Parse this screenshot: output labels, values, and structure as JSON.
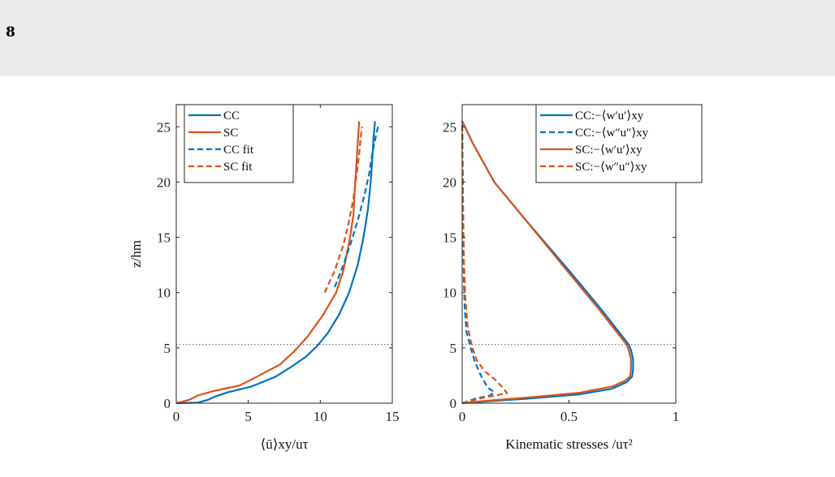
{
  "page": {
    "number": "8"
  },
  "colors": {
    "cc": "#0072BD",
    "sc": "#D95319",
    "axis": "#262626",
    "dotted": "#555555"
  },
  "chart_data": [
    {
      "type": "line",
      "xlabel": "⟨ū⟩xy/uτ",
      "ylabel": "z/hm",
      "xlim": [
        0,
        15
      ],
      "ylim": [
        0,
        27
      ],
      "xticks": [
        0,
        5,
        10,
        15
      ],
      "yticks": [
        0,
        5,
        10,
        15,
        20,
        25
      ],
      "hline": 5.3,
      "legend_position": "top-left",
      "series": [
        {
          "name": "CC",
          "style": "solid",
          "color": "cc",
          "x": [
            0,
            1.5,
            2.2,
            2.7,
            3.6,
            5.2,
            6.9,
            8.0,
            9.0,
            9.8,
            10.5,
            11.3,
            12.0,
            12.6,
            13.0,
            13.3,
            13.5,
            13.6,
            13.7,
            13.8
          ],
          "y": [
            0,
            0.05,
            0.3,
            0.6,
            1.0,
            1.5,
            2.4,
            3.3,
            4.2,
            5.2,
            6.3,
            8.0,
            10.0,
            12.5,
            15.0,
            17.5,
            20.0,
            22.0,
            24.0,
            25.5
          ]
        },
        {
          "name": "SC",
          "style": "solid",
          "color": "sc",
          "x": [
            0,
            0.9,
            1.5,
            2.6,
            4.4,
            5.6,
            7.2,
            8.2,
            9.1,
            10.2,
            11.1,
            11.6,
            12.0,
            12.3,
            12.4,
            12.5,
            12.6,
            12.7
          ],
          "y": [
            0,
            0.3,
            0.7,
            1.1,
            1.6,
            2.4,
            3.5,
            4.7,
            6.0,
            8.0,
            10.0,
            12.0,
            14.5,
            17.0,
            19.5,
            21.5,
            23.5,
            25.5
          ]
        },
        {
          "name": "CC fit",
          "style": "dashed",
          "color": "cc",
          "x": [
            11.0,
            11.6,
            12.2,
            12.7,
            13.1,
            13.4,
            13.6,
            13.8,
            14.0
          ],
          "y": [
            10.5,
            12.5,
            14.8,
            17.0,
            19.0,
            20.8,
            22.5,
            23.8,
            25.0
          ]
        },
        {
          "name": "SC fit",
          "style": "dashed",
          "color": "sc",
          "x": [
            10.3,
            11.0,
            11.6,
            12.0,
            12.3,
            12.5,
            12.7,
            12.8,
            12.9
          ],
          "y": [
            10.0,
            12.0,
            14.3,
            16.5,
            18.5,
            20.5,
            22.5,
            24.0,
            25.0
          ]
        }
      ]
    },
    {
      "type": "line",
      "xlabel": "Kinematic stresses /uτ²",
      "ylabel": "",
      "xlim": [
        0,
        1
      ],
      "ylim": [
        0,
        27
      ],
      "xticks": [
        0,
        0.5,
        1
      ],
      "yticks": [
        0,
        5,
        10,
        15,
        20,
        25
      ],
      "hline": 5.3,
      "legend_position": "top-right",
      "series": [
        {
          "name": "CC:−⟨w′u′⟩xy",
          "style": "solid",
          "color": "cc",
          "x": [
            0,
            0.1,
            0.3,
            0.55,
            0.7,
            0.77,
            0.795,
            0.8,
            0.8,
            0.79,
            0.78,
            0.65,
            0.5,
            0.3,
            0.15,
            0.05,
            0
          ],
          "y": [
            0,
            0.15,
            0.4,
            0.8,
            1.3,
            1.9,
            2.4,
            3.0,
            4.0,
            4.8,
            5.3,
            8.5,
            12.0,
            16.5,
            20.0,
            23.5,
            25.5
          ]
        },
        {
          "name": "CC:−⟨w″u″⟩xy",
          "style": "dashed",
          "color": "cc",
          "x": [
            0.0,
            0.06,
            0.13,
            0.15,
            0.12,
            0.09,
            0.06,
            0.04,
            0.02,
            0.012,
            0.008,
            0.005,
            0.003,
            0
          ],
          "y": [
            0,
            0.4,
            0.7,
            1.0,
            1.4,
            2.4,
            3.7,
            5.0,
            6.5,
            8.5,
            11.0,
            15.0,
            20.0,
            25.5
          ]
        },
        {
          "name": "SC:−⟨w′u′⟩xy",
          "style": "solid",
          "color": "sc",
          "x": [
            0,
            0.1,
            0.3,
            0.55,
            0.7,
            0.76,
            0.785,
            0.79,
            0.79,
            0.78,
            0.77,
            0.64,
            0.49,
            0.3,
            0.15,
            0.05,
            0
          ],
          "y": [
            0,
            0.2,
            0.5,
            0.95,
            1.5,
            2.0,
            2.4,
            3.0,
            4.0,
            4.8,
            5.3,
            8.5,
            12.0,
            16.5,
            20.0,
            23.5,
            25.5
          ]
        },
        {
          "name": "SC:−⟨w″u″⟩xy",
          "style": "dashed",
          "color": "sc",
          "x": [
            0.0,
            0.1,
            0.21,
            0.19,
            0.15,
            0.11,
            0.07,
            0.045,
            0.025,
            0.015,
            0.008,
            0.004,
            0
          ],
          "y": [
            0,
            0.5,
            0.9,
            1.4,
            2.2,
            2.8,
            3.8,
            5.2,
            7.0,
            9.5,
            13.0,
            18.0,
            25.5
          ]
        }
      ]
    }
  ]
}
